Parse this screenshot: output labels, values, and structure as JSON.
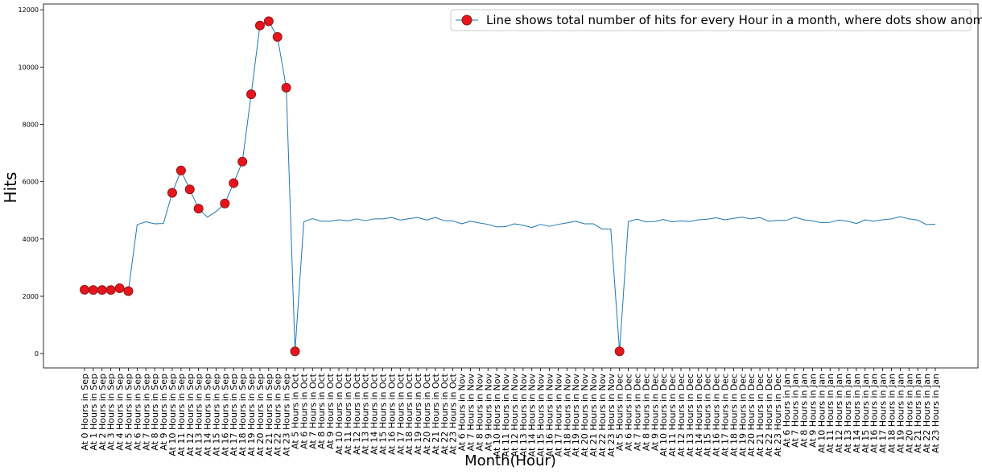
{
  "chart_data": {
    "type": "line",
    "title": "",
    "xlabel": "Month(Hour)",
    "ylabel": "Hits",
    "ylim": [
      -500,
      12200
    ],
    "yticks": [
      0,
      2000,
      4000,
      6000,
      8000,
      10000,
      12000
    ],
    "grid": false,
    "legend": {
      "placement": "top-right",
      "label": "Line shows total number of hits for every Hour in a month, where dots show anomaly"
    },
    "colors": {
      "line": "#1f77b4",
      "anomaly_fill": "#e8141c",
      "anomaly_edge": "#8b1a1a"
    },
    "categories": [
      "At 0 Hours in Sep",
      "At 1 Hours in Sep",
      "At 2 Hours in Sep",
      "At 3 Hours in Sep",
      "At 4 Hours in Sep",
      "At 5 Hours in Sep",
      "At 6 Hours in Sep",
      "At 7 Hours in Sep",
      "At 8 Hours in Sep",
      "At 9 Hours in Sep",
      "At 10 Hours in Sep",
      "At 11 Hours in Sep",
      "At 12 Hours in Sep",
      "At 13 Hours in Sep",
      "At 14 Hours in Sep",
      "At 15 Hours in Sep",
      "At 16 Hours in Sep",
      "At 17 Hours in Sep",
      "At 18 Hours in Sep",
      "At 19 Hours in Sep",
      "At 20 Hours in Sep",
      "At 21 Hours in Sep",
      "At 22 Hours in Sep",
      "At 23 Hours in Sep",
      "At 5 Hours in Oct",
      "At 6 Hours in Oct",
      "At 7 Hours in Oct",
      "At 8 Hours in Oct",
      "At 9 Hours in Oct",
      "At 10 Hours in Oct",
      "At 11 Hours in Oct",
      "At 12 Hours in Oct",
      "At 13 Hours in Oct",
      "At 14 Hours in Oct",
      "At 15 Hours in Oct",
      "At 16 Hours in Oct",
      "At 17 Hours in Oct",
      "At 18 Hours in Oct",
      "At 19 Hours in Oct",
      "At 20 Hours in Oct",
      "At 21 Hours in Oct",
      "At 22 Hours in Oct",
      "At 23 Hours in Oct",
      "At 6 Hours in Nov",
      "At 7 Hours in Nov",
      "At 8 Hours in Nov",
      "At 9 Hours in Nov",
      "At 10 Hours in Nov",
      "At 11 Hours in Nov",
      "At 12 Hours in Nov",
      "At 13 Hours in Nov",
      "At 14 Hours in Nov",
      "At 15 Hours in Nov",
      "At 16 Hours in Nov",
      "At 17 Hours in Nov",
      "At 18 Hours in Nov",
      "At 19 Hours in Nov",
      "At 20 Hours in Nov",
      "At 21 Hours in Nov",
      "At 22 Hours in Nov",
      "At 23 Hours in Nov",
      "At 5 Hours in Dec",
      "At 6 Hours in Dec",
      "At 7 Hours in Dec",
      "At 8 Hours in Dec",
      "At 9 Hours in Dec",
      "At 10 Hours in Dec",
      "At 11 Hours in Dec",
      "At 12 Hours in Dec",
      "At 13 Hours in Dec",
      "At 14 Hours in Dec",
      "At 15 Hours in Dec",
      "At 16 Hours in Dec",
      "At 17 Hours in Dec",
      "At 18 Hours in Dec",
      "At 19 Hours in Dec",
      "At 20 Hours in Dec",
      "At 21 Hours in Dec",
      "At 22 Hours in Dec",
      "At 23 Hours in Dec",
      "At 6 Hours in Jan",
      "At 7 Hours in Jan",
      "At 8 Hours in Jan",
      "At 9 Hours in Jan",
      "At 10 Hours in Jan",
      "At 11 Hours in Jan",
      "At 12 Hours in Jan",
      "At 13 Hours in Jan",
      "At 14 Hours in Jan",
      "At 15 Hours in Jan",
      "At 16 Hours in Jan",
      "At 17 Hours in Jan",
      "At 18 Hours in Jan",
      "At 19 Hours in Jan",
      "At 20 Hours in Jan",
      "At 21 Hours in Jan",
      "At 22 Hours in Jan",
      "At 23 Hours in Jan"
    ],
    "series": [
      {
        "values": [
          2230,
          2220,
          2220,
          2220,
          2280,
          2180,
          4500,
          4600,
          4530,
          4540,
          5610,
          6390,
          5730,
          5060,
          4760,
          4960,
          5240,
          5950,
          6700,
          9050,
          11450,
          11600,
          11050,
          9280,
          80,
          4600,
          4710,
          4620,
          4620,
          4670,
          4630,
          4700,
          4640,
          4700,
          4700,
          4750,
          4660,
          4710,
          4750,
          4660,
          4750,
          4640,
          4630,
          4530,
          4620,
          4560,
          4510,
          4420,
          4430,
          4530,
          4480,
          4400,
          4510,
          4440,
          4510,
          4560,
          4620,
          4530,
          4530,
          4350,
          4350,
          80,
          4610,
          4690,
          4600,
          4610,
          4680,
          4600,
          4630,
          4610,
          4670,
          4690,
          4740,
          4670,
          4720,
          4760,
          4700,
          4750,
          4620,
          4650,
          4650,
          4760,
          4670,
          4630,
          4570,
          4580,
          4660,
          4620,
          4540,
          4670,
          4620,
          4670,
          4700,
          4780,
          4700,
          4660,
          4500,
          4520
        ]
      }
    ],
    "anomalies": [
      {
        "category": "At 0 Hours in Sep",
        "value": 2230
      },
      {
        "category": "At 1 Hours in Sep",
        "value": 2220
      },
      {
        "category": "At 2 Hours in Sep",
        "value": 2220
      },
      {
        "category": "At 3 Hours in Sep",
        "value": 2220
      },
      {
        "category": "At 4 Hours in Sep",
        "value": 2280
      },
      {
        "category": "At 5 Hours in Sep",
        "value": 2180
      },
      {
        "category": "At 10 Hours in Sep",
        "value": 5610
      },
      {
        "category": "At 11 Hours in Sep",
        "value": 6390
      },
      {
        "category": "At 12 Hours in Sep",
        "value": 5730
      },
      {
        "category": "At 13 Hours in Sep",
        "value": 5060
      },
      {
        "category": "At 16 Hours in Sep",
        "value": 5240
      },
      {
        "category": "At 17 Hours in Sep",
        "value": 5950
      },
      {
        "category": "At 18 Hours in Sep",
        "value": 6700
      },
      {
        "category": "At 19 Hours in Sep",
        "value": 9050
      },
      {
        "category": "At 20 Hours in Sep",
        "value": 11450
      },
      {
        "category": "At 21 Hours in Sep",
        "value": 11600
      },
      {
        "category": "At 22 Hours in Sep",
        "value": 11050
      },
      {
        "category": "At 23 Hours in Sep",
        "value": 9280
      },
      {
        "category": "At 5 Hours in Oct",
        "value": 80
      },
      {
        "category": "At 5 Hours in Dec",
        "value": 80
      }
    ]
  }
}
